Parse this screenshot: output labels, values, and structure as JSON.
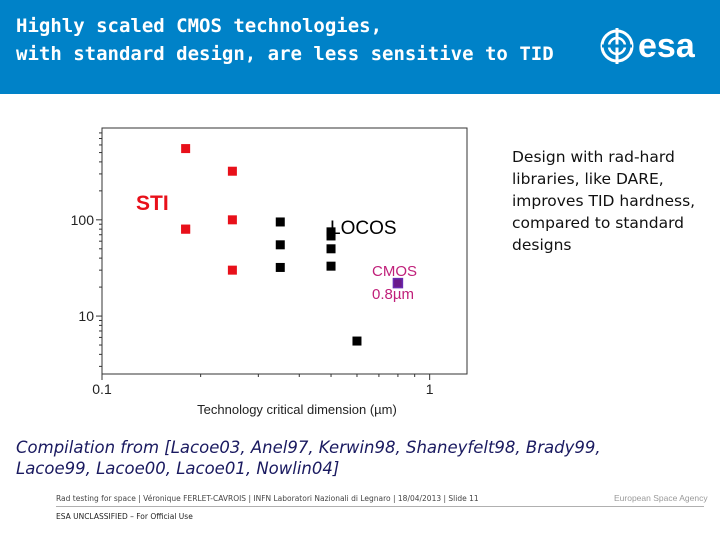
{
  "header": {
    "title_line1": "Highly scaled CMOS technologies,",
    "title_line2": "with standard design, are less sensitive to TID",
    "logo_text": "esa",
    "logo_icon": "esa-logo-icon"
  },
  "side_text": "Design with rad-hard libraries, like DARE, improves TID hardness, compared to standard designs",
  "compilation": "Compilation from [Lacoe03, Anel97, Kerwin98, Shaneyfelt98, Brady99, Lacoe99, Lacoe00, Lacoe01, Nowlin04]",
  "footer": {
    "text": "Rad testing for space | Véronique FERLET-CAVROIS | INFN Laboratori Nazionali di Legnaro | 18/04/2013 | Slide 11",
    "classification": "ESA UNCLASSIFIED – For Official Use",
    "agency": "European Space Agency"
  },
  "chart_data": {
    "type": "scatter",
    "xlabel": "Technology critical dimension (µm)",
    "ylabel": "",
    "xscale": "log",
    "yscale": "log",
    "xlim": [
      0.1,
      1.3
    ],
    "ylim": [
      2.5,
      900
    ],
    "x_ticks": [
      {
        "value": 0.1,
        "label": "0.1"
      },
      {
        "value": 1,
        "label": "1"
      }
    ],
    "y_ticks": [
      {
        "value": 10,
        "label": "10"
      },
      {
        "value": 100,
        "label": "100"
      }
    ],
    "annotations": [
      {
        "text": "STI",
        "color": "#e8101a"
      },
      {
        "text": "LOCOS",
        "color": "#000000"
      },
      {
        "text": "CMOS",
        "color": "#c0207a"
      },
      {
        "text": "0.8µm",
        "color": "#c0207a"
      }
    ],
    "series": [
      {
        "name": "STI",
        "color": "#e8101a",
        "x": [
          0.18,
          0.18,
          0.25,
          0.25,
          0.18,
          0.25
        ],
        "y": [
          550,
          80,
          320,
          100,
          80,
          30
        ]
      },
      {
        "name": "LOCOS",
        "color": "#000000",
        "x": [
          0.35,
          0.35,
          0.35,
          0.5,
          0.5,
          0.5,
          0.5,
          0.6
        ],
        "y": [
          95,
          55,
          32,
          75,
          68,
          50,
          33,
          5.5
        ]
      },
      {
        "name": "CMOS 0.8µm",
        "color": "#6a1a8a",
        "x": [
          0.8
        ],
        "y": [
          22
        ]
      }
    ]
  }
}
